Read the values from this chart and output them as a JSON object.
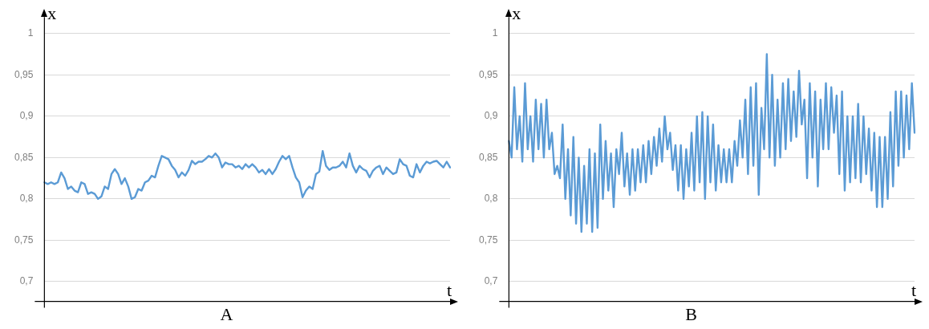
{
  "chart_data": [
    {
      "type": "line",
      "title": "A",
      "xlabel": "t",
      "ylabel": "x",
      "grid": "y",
      "tick_labels": "y",
      "marker": "none",
      "line_style": "solid",
      "ylim": [
        0.676,
        1.02
      ],
      "yticks": [
        {
          "value": 0.7,
          "label": "0,7"
        },
        {
          "value": 0.75,
          "label": "0,75"
        },
        {
          "value": 0.8,
          "label": "0,8"
        },
        {
          "value": 0.85,
          "label": "0,85"
        },
        {
          "value": 0.9,
          "label": "0,9"
        },
        {
          "value": 0.95,
          "label": "0,95"
        },
        1
      ],
      "categories": [
        null,
        null,
        null,
        null,
        null,
        null,
        null,
        null,
        null,
        null,
        null,
        null,
        null,
        null,
        null,
        null,
        null,
        null,
        null,
        null,
        null,
        null,
        null,
        null,
        null,
        null,
        null,
        null,
        null,
        null,
        null,
        null,
        null,
        null,
        null,
        null,
        null,
        null,
        null,
        null,
        null,
        null,
        null,
        null,
        null,
        null,
        null,
        null,
        null,
        null,
        null,
        null,
        null,
        null,
        null,
        null,
        null,
        null,
        null,
        null,
        null,
        null,
        null,
        null,
        null,
        null,
        null,
        null,
        null,
        null,
        null,
        null,
        null,
        null,
        null,
        null,
        null,
        null,
        null,
        null,
        null,
        null,
        null,
        null,
        null,
        null,
        null,
        null,
        null,
        null,
        null,
        null,
        null,
        null,
        null,
        null,
        null,
        null,
        null,
        null,
        null,
        null,
        null,
        null,
        null,
        null,
        null,
        null,
        null,
        null,
        null,
        null,
        null,
        null,
        null,
        null,
        null,
        null,
        null,
        null,
        null,
        null
      ],
      "series": [
        {
          "color": "#5b9bd5",
          "values": [
            0.82,
            0.818,
            0.82,
            0.818,
            0.82,
            0.832,
            0.825,
            0.812,
            0.815,
            0.81,
            0.808,
            0.82,
            0.818,
            0.806,
            0.808,
            0.806,
            0.8,
            0.803,
            0.815,
            0.812,
            0.83,
            0.836,
            0.83,
            0.818,
            0.825,
            0.815,
            0.8,
            0.802,
            0.812,
            0.81,
            0.82,
            0.822,
            0.828,
            0.826,
            0.84,
            0.852,
            0.85,
            0.848,
            0.84,
            0.835,
            0.826,
            0.832,
            0.828,
            0.835,
            0.846,
            0.842,
            0.845,
            0.845,
            0.848,
            0.852,
            0.85,
            0.855,
            0.85,
            0.838,
            0.844,
            0.842,
            0.842,
            0.838,
            0.84,
            0.836,
            0.842,
            0.838,
            0.842,
            0.838,
            0.832,
            0.835,
            0.83,
            0.836,
            0.83,
            0.836,
            0.845,
            0.852,
            0.848,
            0.852,
            0.838,
            0.826,
            0.82,
            0.802,
            0.81,
            0.815,
            0.812,
            0.83,
            0.833,
            0.858,
            0.84,
            0.835,
            0.838,
            0.838,
            0.84,
            0.845,
            0.838,
            0.855,
            0.84,
            0.832,
            0.84,
            0.836,
            0.834,
            0.826,
            0.834,
            0.838,
            0.84,
            0.83,
            0.838,
            0.834,
            0.83,
            0.832,
            0.848,
            0.842,
            0.84,
            0.828,
            0.826,
            0.842,
            0.832,
            0.84,
            0.845,
            0.843,
            0.845,
            0.846,
            0.842,
            0.838,
            0.845,
            0.838
          ]
        }
      ]
    },
    {
      "type": "line",
      "title": "B",
      "xlabel": "t",
      "ylabel": "x",
      "grid": "y",
      "tick_labels": "y",
      "marker": "none",
      "line_style": "solid",
      "ylim": [
        0.676,
        1.02
      ],
      "yticks": [
        {
          "value": 0.7,
          "label": "0,7"
        },
        {
          "value": 0.75,
          "label": "0,75"
        },
        {
          "value": 0.8,
          "label": "0,8"
        },
        {
          "value": 0.85,
          "label": "0,85"
        },
        {
          "value": 0.9,
          "label": "0,9"
        },
        {
          "value": 0.95,
          "label": "0,95"
        },
        1
      ],
      "categories": [
        null,
        null,
        null,
        null,
        null,
        null,
        null,
        null,
        null,
        null,
        null,
        null,
        null,
        null,
        null,
        null,
        null,
        null,
        null,
        null,
        null,
        null,
        null,
        null,
        null,
        null,
        null,
        null,
        null,
        null,
        null,
        null,
        null,
        null,
        null,
        null,
        null,
        null,
        null,
        null,
        null,
        null,
        null,
        null,
        null,
        null,
        null,
        null,
        null,
        null,
        null,
        null,
        null,
        null,
        null,
        null,
        null,
        null,
        null,
        null,
        null,
        null,
        null,
        null,
        null,
        null,
        null,
        null,
        null,
        null,
        null,
        null,
        null,
        null,
        null,
        null,
        null,
        null,
        null,
        null,
        null,
        null,
        null,
        null,
        null,
        null,
        null,
        null,
        null,
        null,
        null,
        null,
        null,
        null,
        null,
        null,
        null,
        null,
        null,
        null,
        null,
        null,
        null,
        null,
        null,
        null,
        null,
        null,
        null,
        null,
        null,
        null,
        null,
        null,
        null,
        null,
        null,
        null,
        null,
        null,
        null,
        null,
        null,
        null,
        null,
        null,
        null,
        null,
        null,
        null,
        null,
        null,
        null,
        null,
        null,
        null,
        null,
        null,
        null,
        null,
        null,
        null,
        null,
        null,
        null,
        null,
        null,
        null,
        null,
        null,
        null,
        null
      ],
      "series": [
        {
          "color": "#5b9bd5",
          "values": [
            0.87,
            0.85,
            0.935,
            0.86,
            0.9,
            0.845,
            0.94,
            0.86,
            0.9,
            0.845,
            0.92,
            0.86,
            0.915,
            0.85,
            0.92,
            0.86,
            0.88,
            0.83,
            0.84,
            0.825,
            0.89,
            0.8,
            0.86,
            0.78,
            0.875,
            0.77,
            0.85,
            0.76,
            0.84,
            0.77,
            0.86,
            0.76,
            0.855,
            0.765,
            0.89,
            0.8,
            0.87,
            0.81,
            0.855,
            0.79,
            0.86,
            0.83,
            0.88,
            0.815,
            0.855,
            0.805,
            0.86,
            0.81,
            0.86,
            0.82,
            0.865,
            0.82,
            0.87,
            0.83,
            0.875,
            0.84,
            0.885,
            0.845,
            0.9,
            0.86,
            0.88,
            0.835,
            0.865,
            0.81,
            0.865,
            0.8,
            0.86,
            0.815,
            0.88,
            0.81,
            0.9,
            0.82,
            0.905,
            0.8,
            0.9,
            0.82,
            0.89,
            0.81,
            0.865,
            0.82,
            0.86,
            0.82,
            0.86,
            0.82,
            0.87,
            0.84,
            0.895,
            0.85,
            0.92,
            0.83,
            0.935,
            0.84,
            0.94,
            0.805,
            0.91,
            0.86,
            0.975,
            0.85,
            0.95,
            0.84,
            0.92,
            0.85,
            0.94,
            0.86,
            0.945,
            0.87,
            0.93,
            0.875,
            0.955,
            0.89,
            0.92,
            0.825,
            0.94,
            0.85,
            0.93,
            0.815,
            0.92,
            0.86,
            0.94,
            0.86,
            0.935,
            0.88,
            0.925,
            0.83,
            0.93,
            0.81,
            0.9,
            0.82,
            0.9,
            0.825,
            0.915,
            0.82,
            0.9,
            0.83,
            0.885,
            0.81,
            0.88,
            0.79,
            0.875,
            0.79,
            0.875,
            0.8,
            0.905,
            0.815,
            0.93,
            0.84,
            0.93,
            0.85,
            0.925,
            0.86,
            0.94,
            0.88
          ]
        }
      ]
    }
  ]
}
